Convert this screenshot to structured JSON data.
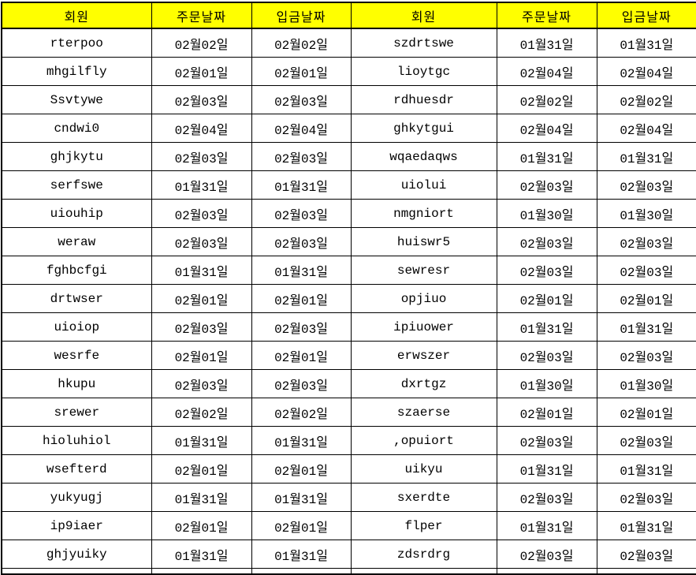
{
  "table": {
    "header_background": "#ffff00",
    "border_color": "#000000",
    "columns": [
      "회원",
      "주문날짜",
      "입금날짜",
      "회원",
      "주문날짜",
      "입금날짜"
    ],
    "rows": [
      [
        "rterpoo",
        "02월02일",
        "02월02일",
        "szdrtswe",
        "01월31일",
        "01월31일"
      ],
      [
        "mhgilfly",
        "02월01일",
        "02월01일",
        "lioytgc",
        "02월04일",
        "02월04일"
      ],
      [
        "Ssvtywe",
        "02월03일",
        "02월03일",
        "rdhuesdr",
        "02월02일",
        "02월02일"
      ],
      [
        "cndwi0",
        "02월04일",
        "02월04일",
        "ghkytgui",
        "02월04일",
        "02월04일"
      ],
      [
        "ghjkytu",
        "02월03일",
        "02월03일",
        "wqaedaqws",
        "01월31일",
        "01월31일"
      ],
      [
        "serfswe",
        "01월31일",
        "01월31일",
        "uiolui",
        "02월03일",
        "02월03일"
      ],
      [
        "uiouhip",
        "02월03일",
        "02월03일",
        "nmgniort",
        "01월30일",
        "01월30일"
      ],
      [
        "weraw",
        "02월03일",
        "02월03일",
        "huiswr5",
        "02월03일",
        "02월03일"
      ],
      [
        "fghbcfgi",
        "01월31일",
        "01월31일",
        "sewresr",
        "02월03일",
        "02월03일"
      ],
      [
        "drtwser",
        "02월01일",
        "02월01일",
        "opjiuo",
        "02월01일",
        "02월01일"
      ],
      [
        "uioiop",
        "02월03일",
        "02월03일",
        "ipiuower",
        "01월31일",
        "01월31일"
      ],
      [
        "wesrfe",
        "02월01일",
        "02월01일",
        "erwszer",
        "02월03일",
        "02월03일"
      ],
      [
        "hkupu",
        "02월03일",
        "02월03일",
        "dxrtgz",
        "01월30일",
        "01월30일"
      ],
      [
        "srewer",
        "02월02일",
        "02월02일",
        "szaerse",
        "02월01일",
        "02월01일"
      ],
      [
        "hioluhiol",
        "01월31일",
        "01월31일",
        ",opuiort",
        "02월03일",
        "02월03일"
      ],
      [
        "wsefterd",
        "02월01일",
        "02월01일",
        "uikyu",
        "01월31일",
        "01월31일"
      ],
      [
        "yukyugj",
        "01월31일",
        "01월31일",
        "sxerdte",
        "02월03일",
        "02월03일"
      ],
      [
        "ip9iaer",
        "02월01일",
        "02월01일",
        "flper",
        "01월31일",
        "01월31일"
      ],
      [
        "ghjyuiky",
        "01월31일",
        "01월31일",
        "zdsrdrg",
        "02월03일",
        "02월03일"
      ]
    ]
  }
}
